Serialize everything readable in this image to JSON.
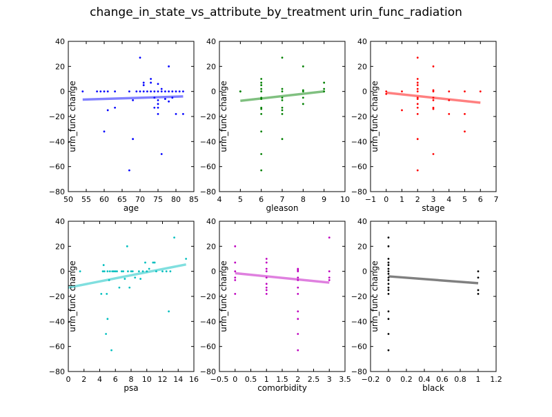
{
  "title": "change_in_state_vs_attribute_by_treatment urin_func_radiation",
  "chart_data": [
    {
      "type": "scatter",
      "xlabel": "age",
      "ylabel": "urin_func change",
      "xlim": [
        50,
        85
      ],
      "ylim": [
        -80,
        40
      ],
      "xticks": [
        50,
        55,
        60,
        65,
        70,
        75,
        80,
        85
      ],
      "yticks": [
        -80,
        -60,
        -40,
        -20,
        0,
        20,
        40
      ],
      "point_color": "#0000ff",
      "trend_color": "#8080ff",
      "trend": [
        [
          54,
          -6.5
        ],
        [
          82,
          -4
        ]
      ],
      "points": [
        [
          54,
          0
        ],
        [
          58,
          0
        ],
        [
          59,
          0
        ],
        [
          60,
          0
        ],
        [
          60,
          -32
        ],
        [
          61,
          0
        ],
        [
          61,
          -15
        ],
        [
          63,
          0
        ],
        [
          63,
          -13
        ],
        [
          67,
          0
        ],
        [
          67,
          -63
        ],
        [
          68,
          -7
        ],
        [
          68,
          -38
        ],
        [
          69,
          0
        ],
        [
          70,
          0
        ],
        [
          70,
          27
        ],
        [
          71,
          0
        ],
        [
          71,
          5
        ],
        [
          71,
          7
        ],
        [
          72,
          0
        ],
        [
          73,
          0
        ],
        [
          73,
          7
        ],
        [
          73,
          10
        ],
        [
          74,
          0
        ],
        [
          74,
          -5
        ],
        [
          74,
          -13
        ],
        [
          75,
          0
        ],
        [
          75,
          -7
        ],
        [
          75,
          -10
        ],
        [
          75,
          -13
        ],
        [
          75,
          -18
        ],
        [
          75,
          6
        ],
        [
          76,
          0
        ],
        [
          76,
          2
        ],
        [
          76,
          -50
        ],
        [
          77,
          0
        ],
        [
          77,
          -6
        ],
        [
          78,
          0
        ],
        [
          78,
          -8
        ],
        [
          78,
          20
        ],
        [
          79,
          0
        ],
        [
          79,
          -5
        ],
        [
          80,
          0
        ],
        [
          80,
          -18
        ],
        [
          81,
          0
        ],
        [
          82,
          0
        ],
        [
          82,
          -18
        ]
      ]
    },
    {
      "type": "scatter",
      "xlabel": "gleason",
      "ylabel": "urin_func change",
      "xlim": [
        4,
        10
      ],
      "ylim": [
        -80,
        40
      ],
      "xticks": [
        4,
        5,
        6,
        7,
        8,
        9,
        10
      ],
      "yticks": [
        -80,
        -60,
        -40,
        -20,
        0,
        20,
        40
      ],
      "point_color": "#008000",
      "trend_color": "#80c080",
      "trend": [
        [
          5,
          -7.5
        ],
        [
          9,
          0
        ]
      ],
      "points": [
        [
          5,
          0
        ],
        [
          5,
          0
        ],
        [
          6,
          0
        ],
        [
          6,
          2
        ],
        [
          6,
          5
        ],
        [
          6,
          7
        ],
        [
          6,
          10
        ],
        [
          6,
          -5
        ],
        [
          6,
          -6
        ],
        [
          6,
          -13
        ],
        [
          6,
          -14
        ],
        [
          6,
          -18
        ],
        [
          6,
          -32
        ],
        [
          6,
          -50
        ],
        [
          6,
          -63
        ],
        [
          7,
          0
        ],
        [
          7,
          2
        ],
        [
          7,
          -5
        ],
        [
          7,
          -7
        ],
        [
          7,
          -13
        ],
        [
          7,
          -15
        ],
        [
          7,
          -18
        ],
        [
          7,
          27
        ],
        [
          7,
          -38
        ],
        [
          8,
          0
        ],
        [
          8,
          1
        ],
        [
          8,
          -5
        ],
        [
          8,
          -10
        ],
        [
          8,
          20
        ],
        [
          9,
          0
        ],
        [
          9,
          2
        ],
        [
          9,
          7
        ]
      ]
    },
    {
      "type": "scatter",
      "xlabel": "stage",
      "ylabel": "urin_func change",
      "xlim": [
        -1,
        7
      ],
      "ylim": [
        -80,
        40
      ],
      "xticks": [
        -1,
        0,
        1,
        2,
        3,
        4,
        5,
        6,
        7
      ],
      "yticks": [
        -80,
        -60,
        -40,
        -20,
        0,
        20,
        40
      ],
      "point_color": "#ff0000",
      "trend_color": "#ff8080",
      "trend": [
        [
          0,
          -1
        ],
        [
          6,
          -9
        ]
      ],
      "points": [
        [
          0,
          0
        ],
        [
          0,
          -2
        ],
        [
          1,
          0
        ],
        [
          1,
          -15
        ],
        [
          2,
          0
        ],
        [
          2,
          2
        ],
        [
          2,
          5
        ],
        [
          2,
          7
        ],
        [
          2,
          10
        ],
        [
          2,
          27
        ],
        [
          2,
          -5
        ],
        [
          2,
          -6
        ],
        [
          2,
          -10
        ],
        [
          2,
          -13
        ],
        [
          2,
          -18
        ],
        [
          2,
          -38
        ],
        [
          2,
          -63
        ],
        [
          3,
          0
        ],
        [
          3,
          1
        ],
        [
          3,
          -5
        ],
        [
          3,
          -7
        ],
        [
          3,
          -13
        ],
        [
          3,
          -14
        ],
        [
          3,
          20
        ],
        [
          3,
          -50
        ],
        [
          4,
          0
        ],
        [
          4,
          -7
        ],
        [
          4,
          -18
        ],
        [
          5,
          0
        ],
        [
          5,
          -18
        ],
        [
          5,
          -32
        ],
        [
          6,
          0
        ]
      ]
    },
    {
      "type": "scatter",
      "xlabel": "psa",
      "ylabel": "urin_func change",
      "xlim": [
        0,
        16
      ],
      "ylim": [
        -80,
        40
      ],
      "xticks": [
        0,
        2,
        4,
        6,
        8,
        10,
        12,
        14,
        16
      ],
      "yticks": [
        -80,
        -60,
        -40,
        -20,
        0,
        20,
        40
      ],
      "point_color": "#00bfbf",
      "trend_color": "#80dfdf",
      "trend": [
        [
          0,
          -13
        ],
        [
          15,
          5.5
        ]
      ],
      "points": [
        [
          1.5,
          0
        ],
        [
          4.2,
          -18
        ],
        [
          4.4,
          0
        ],
        [
          4.5,
          5
        ],
        [
          4.6,
          0
        ],
        [
          4.8,
          -50
        ],
        [
          4.9,
          -18
        ],
        [
          5,
          -38
        ],
        [
          5.0,
          0
        ],
        [
          5.2,
          -7
        ],
        [
          5.3,
          0
        ],
        [
          5.5,
          -63
        ],
        [
          5.6,
          0
        ],
        [
          5.8,
          0
        ],
        [
          6,
          0
        ],
        [
          6.2,
          0
        ],
        [
          6.5,
          -13
        ],
        [
          6.8,
          0
        ],
        [
          7,
          0
        ],
        [
          7.2,
          -6
        ],
        [
          7.5,
          20
        ],
        [
          7.6,
          0
        ],
        [
          7.8,
          -13
        ],
        [
          8,
          0
        ],
        [
          8.2,
          0
        ],
        [
          8.5,
          -5
        ],
        [
          9,
          0
        ],
        [
          9.2,
          -6
        ],
        [
          9.5,
          0
        ],
        [
          9.8,
          7
        ],
        [
          10,
          0
        ],
        [
          10.3,
          2
        ],
        [
          10.8,
          7
        ],
        [
          11,
          7
        ],
        [
          11.2,
          0
        ],
        [
          12,
          0
        ],
        [
          12.5,
          0
        ],
        [
          12.8,
          -32
        ],
        [
          13,
          0
        ],
        [
          13.5,
          27
        ],
        [
          15,
          10
        ]
      ]
    },
    {
      "type": "scatter",
      "xlabel": "comorbidity",
      "ylabel": "urin_func change",
      "xlim": [
        -0.5,
        3.5
      ],
      "ylim": [
        -80,
        40
      ],
      "xticks": [
        -0.5,
        0,
        0.5,
        1,
        1.5,
        2,
        2.5,
        3,
        3.5
      ],
      "yticks": [
        -80,
        -60,
        -40,
        -20,
        0,
        20,
        40
      ],
      "point_color": "#bf00bf",
      "trend_color": "#df80df",
      "trend": [
        [
          0,
          -1.5
        ],
        [
          3,
          -9
        ]
      ],
      "points": [
        [
          0,
          20
        ],
        [
          0,
          7
        ],
        [
          0,
          0
        ],
        [
          0,
          -5
        ],
        [
          0,
          -7
        ],
        [
          0,
          -18
        ],
        [
          1,
          0
        ],
        [
          1,
          2
        ],
        [
          1,
          7
        ],
        [
          1,
          10
        ],
        [
          1,
          -5
        ],
        [
          1,
          -10
        ],
        [
          1,
          -13
        ],
        [
          1,
          -15
        ],
        [
          1,
          -18
        ],
        [
          2,
          0
        ],
        [
          2,
          1
        ],
        [
          2,
          2
        ],
        [
          2,
          -5
        ],
        [
          2,
          -7
        ],
        [
          2,
          -13
        ],
        [
          2,
          -18
        ],
        [
          2,
          -32
        ],
        [
          2,
          -38
        ],
        [
          2,
          -50
        ],
        [
          2,
          -63
        ],
        [
          3,
          27
        ],
        [
          3,
          0
        ],
        [
          3,
          -5
        ],
        [
          3,
          -7
        ]
      ]
    },
    {
      "type": "scatter",
      "xlabel": "black",
      "ylabel": "urin_func change",
      "xlim": [
        -0.2,
        1.2
      ],
      "ylim": [
        -80,
        40
      ],
      "xticks": [
        -0.2,
        0,
        0.2,
        0.4,
        0.6,
        0.8,
        1,
        1.2
      ],
      "yticks": [
        -80,
        -60,
        -40,
        -20,
        0,
        20,
        40
      ],
      "point_color": "#000000",
      "trend_color": "#808080",
      "trend": [
        [
          0,
          -4
        ],
        [
          1,
          -9.5
        ]
      ],
      "points": [
        [
          0,
          27
        ],
        [
          0,
          20
        ],
        [
          0,
          10
        ],
        [
          0,
          7
        ],
        [
          0,
          5
        ],
        [
          0,
          2
        ],
        [
          0,
          0
        ],
        [
          0,
          -2
        ],
        [
          0,
          -5
        ],
        [
          0,
          -7
        ],
        [
          0,
          -10
        ],
        [
          0,
          -13
        ],
        [
          0,
          -15
        ],
        [
          0,
          -18
        ],
        [
          0,
          -32
        ],
        [
          0,
          -38
        ],
        [
          0,
          -50
        ],
        [
          0,
          -63
        ],
        [
          1,
          0
        ],
        [
          1,
          -5
        ],
        [
          1,
          -15
        ],
        [
          1,
          -18
        ]
      ]
    }
  ]
}
